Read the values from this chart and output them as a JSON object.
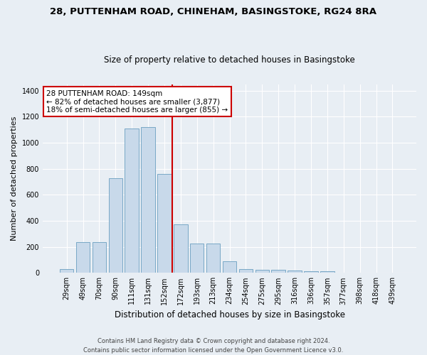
{
  "title1": "28, PUTTENHAM ROAD, CHINEHAM, BASINGSTOKE, RG24 8RA",
  "title2": "Size of property relative to detached houses in Basingstoke",
  "xlabel": "Distribution of detached houses by size in Basingstoke",
  "ylabel": "Number of detached properties",
  "categories": [
    "29sqm",
    "49sqm",
    "70sqm",
    "90sqm",
    "111sqm",
    "131sqm",
    "152sqm",
    "172sqm",
    "193sqm",
    "213sqm",
    "234sqm",
    "254sqm",
    "275sqm",
    "295sqm",
    "316sqm",
    "336sqm",
    "357sqm",
    "377sqm",
    "398sqm",
    "418sqm",
    "439sqm"
  ],
  "values": [
    30,
    235,
    235,
    725,
    1110,
    1120,
    760,
    375,
    225,
    225,
    90,
    30,
    25,
    22,
    18,
    15,
    10,
    0,
    0,
    0,
    0
  ],
  "bar_color": "#c8d9ea",
  "bar_edge_color": "#6a9ec0",
  "vline_x_idx": 6,
  "vline_color": "#cc0000",
  "annotation_text": "28 PUTTENHAM ROAD: 149sqm\n← 82% of detached houses are smaller (3,877)\n18% of semi-detached houses are larger (855) →",
  "annotation_box_color": "#ffffff",
  "annotation_box_edge": "#cc0000",
  "annotation_fontsize": 7.5,
  "footer": "Contains HM Land Registry data © Crown copyright and database right 2024.\nContains public sector information licensed under the Open Government Licence v3.0.",
  "ylim": [
    0,
    1450
  ],
  "yticks": [
    0,
    200,
    400,
    600,
    800,
    1000,
    1200,
    1400
  ],
  "title_fontsize": 9.5,
  "subtitle_fontsize": 8.5,
  "xlabel_fontsize": 8.5,
  "ylabel_fontsize": 8.0,
  "tick_fontsize": 7.0,
  "bg_color": "#e8eef4",
  "plot_bg_color": "#e8eef4",
  "grid_color": "#ffffff",
  "footer_fontsize": 6.0
}
